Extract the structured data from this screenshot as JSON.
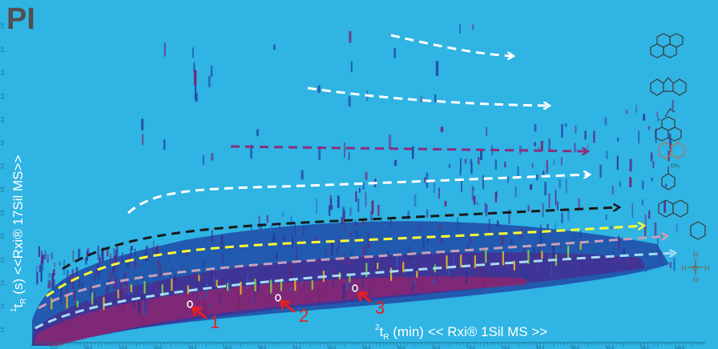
{
  "panel": {
    "label": "PI",
    "background": "#2fb4e4",
    "label_color": "#505050"
  },
  "axes": {
    "y_label": "¹t_R (s)   <<Rxi® 17Sil MS>>",
    "y_label_base": "t",
    "y_label_sup": "1",
    "y_label_sub": "R",
    "y_label_rest": " (s)   <<Rxi® 17Sil MS>>",
    "x_label_base": "t",
    "x_label_sup": "2",
    "x_label_sub": "R",
    "x_label_rest": " (min)   << Rxi® 1Sil MS >>",
    "label_color": "#ffffff"
  },
  "chart_data": {
    "type": "heatmap",
    "title": "PI",
    "xlabel": "²t_R (min)  << Rxi® 1Sil MS >>",
    "ylabel": "¹t_R (s)  <<Rxi® 17Sil MS>>",
    "x_ticks": [
      "10.0",
      "15.0",
      "20.0",
      "25.0",
      "30.0",
      "35.0",
      "40.0",
      "45.0",
      "50.0",
      "55.0",
      "60.0",
      "65.0",
      "70.0",
      "75.0",
      "80.0",
      "85.0",
      "90.0",
      "95.0",
      "100.0"
    ],
    "y_ticks": [
      "0.5",
      "1.0",
      "1.5",
      "2.0",
      "2.5",
      "3.0",
      "3.5",
      "4.0",
      "4.5",
      "5.0",
      "5.5",
      "6.0",
      "6.5",
      "7.0"
    ],
    "xlim": [
      7,
      103
    ],
    "ylim": [
      0.2,
      7.4
    ],
    "colormap": [
      "#2fb4e4",
      "#1f4aa6",
      "#5a2a8c",
      "#c2185b",
      "#e6b422",
      "#7dd34a"
    ],
    "series": [
      {
        "color": "#ffffff",
        "x": [
          52,
          72,
          81
        ],
        "y": [
          7.05,
          6.95,
          6.85
        ]
      },
      {
        "color": "#ffffff",
        "x": [
          41,
          60,
          74
        ],
        "y": [
          6.05,
          5.95,
          5.85
        ]
      },
      {
        "color": "#8b2f7a",
        "x": [
          34,
          55,
          77
        ],
        "y": [
          5.0,
          4.95,
          4.9
        ]
      },
      {
        "color": "#ffffff",
        "x": [
          19,
          26,
          48,
          69,
          80
        ],
        "y": [
          3.55,
          4.2,
          4.35,
          4.4,
          4.45
        ]
      },
      {
        "color": "#1a1a1a",
        "x": [
          11,
          25,
          47,
          71,
          96
        ],
        "y": [
          2.3,
          3.15,
          3.6,
          3.75,
          3.95
        ]
      },
      {
        "color": "#ffff33",
        "x": [
          10,
          22,
          44,
          71,
          98
        ],
        "y": [
          1.85,
          2.6,
          3.0,
          3.25,
          3.45
        ]
      },
      {
        "color": "#c8a0b8",
        "x": [
          9,
          25,
          50,
          78,
          102
        ],
        "y": [
          1.55,
          2.15,
          2.5,
          2.7,
          2.9
        ]
      },
      {
        "color": "#a8dcf4",
        "x": [
          8,
          25,
          52,
          80,
          100
        ],
        "y": [
          1.15,
          1.7,
          2.05,
          2.3,
          2.5
        ]
      }
    ],
    "annotations": [
      {
        "text": "1",
        "x": 31.5,
        "y": 0.6,
        "point_x": 30.2,
        "point_y": 1.0
      },
      {
        "text": "2",
        "x": 43.1,
        "y": 0.75,
        "point_x": 42.1,
        "point_y": 1.1
      },
      {
        "text": "3",
        "x": 53.9,
        "y": 0.95,
        "point_x": 52.6,
        "point_y": 1.3
      }
    ],
    "structures": [
      "pyrene",
      "fluorene",
      "acenaphthene",
      "naphthalene",
      "toluene",
      "decalin",
      "cyclohexane",
      "methane"
    ],
    "structure_labels": [
      {
        "structure": "toluene",
        "texts": [
          "CH₃"
        ]
      },
      {
        "structure": "methane",
        "texts": [
          "H",
          "H",
          "C",
          "H",
          "H"
        ]
      }
    ],
    "grid": false,
    "legend": "none"
  }
}
